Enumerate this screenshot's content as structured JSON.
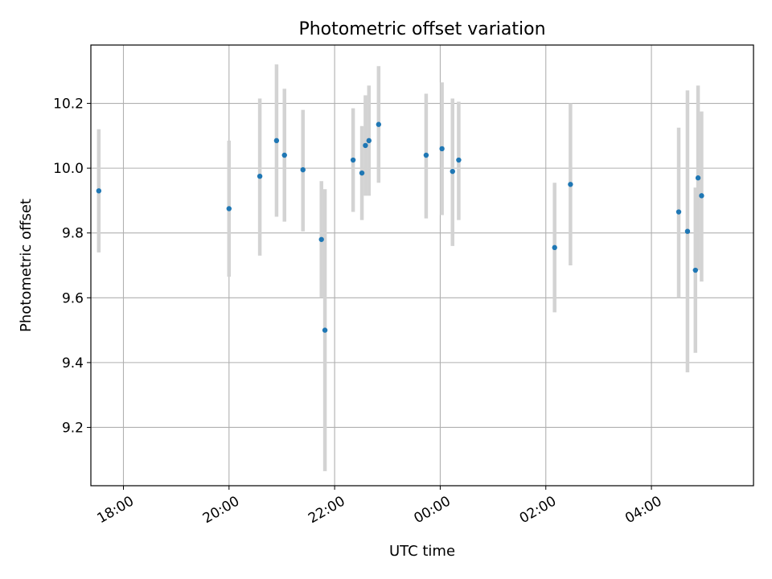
{
  "chart_data": {
    "type": "scatter",
    "title": "Photometric offset variation",
    "xlabel": "UTC time",
    "ylabel": "Photometric offset",
    "x_axis_kind": "time (hours, wrapping past midnight)",
    "xlim": [
      "17:23",
      "05:56"
    ],
    "ylim": [
      9.02,
      10.38
    ],
    "grid": true,
    "x_ticks": [
      "18:00",
      "20:00",
      "22:00",
      "00:00",
      "02:00",
      "04:00"
    ],
    "y_ticks": [
      "9.2",
      "9.4",
      "9.6",
      "9.8",
      "10.0",
      "10.2"
    ],
    "colors": {
      "marker": "#1f77b4",
      "errorbar": "#d3d3d3",
      "grid": "#b0b0b0"
    },
    "series": [
      {
        "points": [
          {
            "x": "17:32",
            "y": 9.93,
            "err_low": 9.74,
            "err_high": 10.12
          },
          {
            "x": "20:00",
            "y": 9.875,
            "err_low": 9.665,
            "err_high": 10.085
          },
          {
            "x": "20:35",
            "y": 9.975,
            "err_low": 9.73,
            "err_high": 10.215
          },
          {
            "x": "20:54",
            "y": 10.085,
            "err_low": 9.85,
            "err_high": 10.32
          },
          {
            "x": "21:03",
            "y": 10.04,
            "err_low": 9.835,
            "err_high": 10.245
          },
          {
            "x": "21:24",
            "y": 9.995,
            "err_low": 9.805,
            "err_high": 10.18
          },
          {
            "x": "21:45",
            "y": 9.78,
            "err_low": 9.6,
            "err_high": 9.96
          },
          {
            "x": "21:49",
            "y": 9.5,
            "err_low": 9.065,
            "err_high": 9.935
          },
          {
            "x": "22:21",
            "y": 10.025,
            "err_low": 9.865,
            "err_high": 10.185
          },
          {
            "x": "22:31",
            "y": 9.985,
            "err_low": 9.84,
            "err_high": 10.13
          },
          {
            "x": "22:35",
            "y": 10.07,
            "err_low": 9.915,
            "err_high": 10.225
          },
          {
            "x": "22:39",
            "y": 10.085,
            "err_low": 9.915,
            "err_high": 10.255
          },
          {
            "x": "22:50",
            "y": 10.135,
            "err_low": 9.955,
            "err_high": 10.315
          },
          {
            "x": "23:44",
            "y": 10.04,
            "err_low": 9.845,
            "err_high": 10.23
          },
          {
            "x": "00:02",
            "y": 10.06,
            "err_low": 9.855,
            "err_high": 10.265
          },
          {
            "x": "00:14",
            "y": 9.99,
            "err_low": 9.76,
            "err_high": 10.215
          },
          {
            "x": "00:21",
            "y": 10.025,
            "err_low": 9.84,
            "err_high": 10.205
          },
          {
            "x": "02:10",
            "y": 9.755,
            "err_low": 9.555,
            "err_high": 9.955
          },
          {
            "x": "02:28",
            "y": 9.95,
            "err_low": 9.7,
            "err_high": 10.2
          },
          {
            "x": "04:31",
            "y": 9.865,
            "err_low": 9.6,
            "err_high": 10.125
          },
          {
            "x": "04:41",
            "y": 9.805,
            "err_low": 9.37,
            "err_high": 10.24
          },
          {
            "x": "04:50",
            "y": 9.685,
            "err_low": 9.43,
            "err_high": 9.94
          },
          {
            "x": "04:53",
            "y": 9.97,
            "err_low": 9.685,
            "err_high": 10.255
          },
          {
            "x": "04:57",
            "y": 9.915,
            "err_low": 9.65,
            "err_high": 10.175
          }
        ]
      }
    ]
  }
}
